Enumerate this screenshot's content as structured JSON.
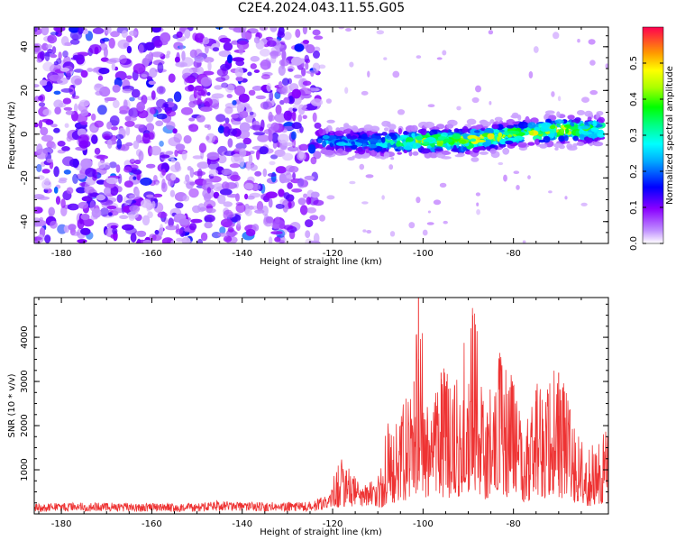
{
  "title": "C2E4.2024.043.11.55.G05",
  "chart_data": [
    {
      "type": "heatmap",
      "name": "spectrogram",
      "xlabel": "Height of straight line (km)",
      "ylabel": "Frequency (Hz)",
      "xlim": [
        -186,
        -59
      ],
      "ylim": [
        -50,
        49
      ],
      "xticks": [
        -180,
        -160,
        -140,
        -120,
        -100,
        -80
      ],
      "yticks": [
        -40,
        -20,
        0,
        20,
        40
      ],
      "colorbar": {
        "label": "Normalized spectral amplitude",
        "range": [
          0.0,
          0.6
        ],
        "ticks": [
          "0.0",
          "0.1",
          "0.2",
          "0.3",
          "0.4",
          "0.5"
        ],
        "colors": [
          "#ffffff",
          "#8a00ff",
          "#0000ff",
          "#00ffff",
          "#00ff00",
          "#ffff00",
          "#ff8000",
          "#ff0050"
        ]
      },
      "noise_region_x": [
        -186,
        -123
      ],
      "signal_band": {
        "x": [
          -123,
          -110,
          -100,
          -90,
          -80,
          -70,
          -60
        ],
        "center_hz": [
          -3,
          -4,
          -3,
          -3,
          0,
          2,
          2
        ],
        "peak_amplitude": [
          0.25,
          0.3,
          0.45,
          0.5,
          0.45,
          0.5,
          0.4
        ]
      }
    },
    {
      "type": "line",
      "name": "snr",
      "xlabel": "Height of straight line (km)",
      "ylabel": "SNR (10 * v/v)",
      "xlim": [
        -186,
        -59
      ],
      "ylim": [
        0,
        4900
      ],
      "xticks": [
        -180,
        -160,
        -140,
        -120,
        -100,
        -80
      ],
      "yticks": [
        1000,
        2000,
        3000,
        4000
      ],
      "color": "#ee3333",
      "x": [
        -186,
        -180,
        -170,
        -160,
        -150,
        -145,
        -140,
        -130,
        -125,
        -121,
        -118,
        -114,
        -110,
        -108,
        -105,
        -102,
        -101,
        -99,
        -96,
        -93,
        -89,
        -86,
        -83,
        -80,
        -78,
        -75,
        -70,
        -66,
        -63,
        -59
      ],
      "y": [
        180,
        200,
        210,
        190,
        200,
        260,
        210,
        220,
        230,
        350,
        1300,
        500,
        640,
        1900,
        2300,
        3000,
        4900,
        2500,
        3200,
        2900,
        4500,
        2600,
        3500,
        2900,
        2000,
        2800,
        3200,
        1700,
        1500,
        1800
      ]
    }
  ]
}
